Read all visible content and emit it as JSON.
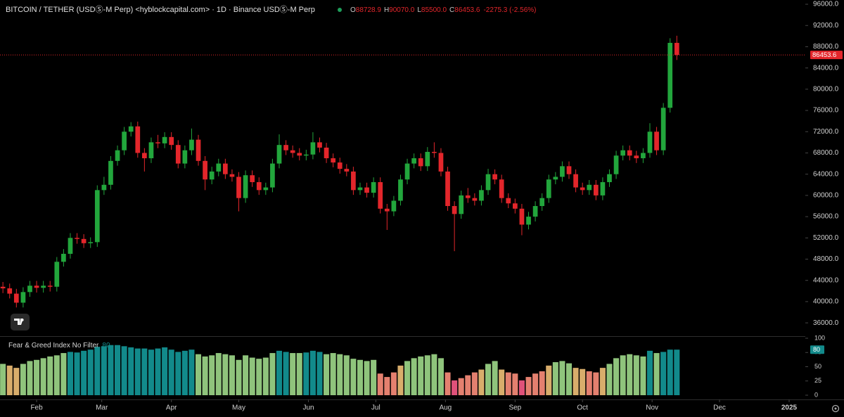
{
  "chart_data": {
    "type": "candlestick",
    "title": "BITCOIN / TETHER (USDⓈ-M Perp) <hyblockcapital.com> · 1D · Binance USDⓈ-M Perp",
    "readout_labels": [
      "O",
      "H",
      "L",
      "C"
    ],
    "readout_values": [
      "88728.9",
      "90070.0",
      "85500.0",
      "86453.6"
    ],
    "change": "-2275.3 (-2.56%)",
    "up_color": "#22a63c",
    "down_color": "#e3262b",
    "x": [
      17,
      20,
      23,
      26,
      29,
      32,
      35,
      38,
      41,
      44,
      47,
      50,
      53,
      56,
      59,
      62,
      65,
      68,
      71,
      74,
      77,
      80,
      83,
      86,
      89,
      92,
      95,
      98,
      101,
      104,
      107,
      110,
      113,
      116,
      119,
      122,
      125,
      128,
      131,
      134,
      137,
      140,
      143,
      146,
      149,
      152,
      155,
      158,
      161,
      164,
      167,
      170,
      173,
      176,
      179,
      182,
      185,
      188,
      191,
      194,
      197,
      200,
      203,
      206,
      209,
      212,
      215,
      218,
      221,
      224,
      227,
      230,
      233,
      236,
      239,
      242,
      245,
      248,
      251,
      254,
      257,
      260,
      263,
      266,
      269,
      272,
      275,
      278,
      281,
      284,
      287,
      290,
      293,
      296,
      299,
      302,
      305,
      308,
      311,
      314,
      317
    ],
    "xlim": [
      15.7,
      374.2
    ],
    "xticks": [
      {
        "value": 32,
        "label": "Feb"
      },
      {
        "value": 61,
        "label": "Mar"
      },
      {
        "value": 92,
        "label": "Apr"
      },
      {
        "value": 122,
        "label": "May"
      },
      {
        "value": 153,
        "label": "Jun"
      },
      {
        "value": 183,
        "label": "Jul"
      },
      {
        "value": 214,
        "label": "Aug"
      },
      {
        "value": 245,
        "label": "Sep"
      },
      {
        "value": 275,
        "label": "Oct"
      },
      {
        "value": 306,
        "label": "Nov"
      },
      {
        "value": 336,
        "label": "Dec"
      },
      {
        "value": 367,
        "label": "2025"
      }
    ],
    "candles": [
      [
        42800,
        43700,
        41600,
        42500
      ],
      [
        42500,
        43400,
        40600,
        41500
      ],
      [
        41500,
        42400,
        38900,
        39800
      ],
      [
        39800,
        42700,
        38900,
        41800
      ],
      [
        41800,
        43900,
        40900,
        43000
      ],
      [
        43000,
        43900,
        41700,
        42600
      ],
      [
        42600,
        43900,
        41700,
        43000
      ],
      [
        43000,
        43900,
        41900,
        42800
      ],
      [
        42800,
        48400,
        41900,
        47500
      ],
      [
        47500,
        49900,
        46600,
        49000
      ],
      [
        49000,
        52900,
        48100,
        52000
      ],
      [
        52000,
        52900,
        50900,
        51800
      ],
      [
        51800,
        52700,
        50100,
        51000
      ],
      [
        51000,
        52100,
        50100,
        51200
      ],
      [
        51200,
        61900,
        50300,
        61000
      ],
      [
        61000,
        63500,
        60100,
        62000
      ],
      [
        62000,
        67400,
        61100,
        66500
      ],
      [
        66500,
        69400,
        65600,
        68500
      ],
      [
        68500,
        72900,
        67600,
        72000
      ],
      [
        72000,
        73800,
        71100,
        73000
      ],
      [
        73000,
        73900,
        67100,
        68000
      ],
      [
        68000,
        68900,
        64500,
        67000
      ],
      [
        67000,
        70900,
        66100,
        70000
      ],
      [
        70000,
        71400,
        68900,
        69800
      ],
      [
        69800,
        71900,
        68900,
        71000
      ],
      [
        71000,
        71900,
        68600,
        69500
      ],
      [
        69500,
        70400,
        65100,
        66000
      ],
      [
        66000,
        69400,
        65100,
        68500
      ],
      [
        68500,
        72600,
        67600,
        70500
      ],
      [
        70500,
        71400,
        65600,
        66500
      ],
      [
        66500,
        67400,
        61000,
        63000
      ],
      [
        63000,
        65400,
        62100,
        64500
      ],
      [
        64500,
        66900,
        63600,
        66000
      ],
      [
        66000,
        66900,
        63100,
        64000
      ],
      [
        64000,
        64900,
        62600,
        63500
      ],
      [
        63500,
        64400,
        57000,
        59500
      ],
      [
        59500,
        64700,
        58600,
        63800
      ],
      [
        63800,
        64700,
        61600,
        62500
      ],
      [
        62500,
        63400,
        60100,
        61000
      ],
      [
        61000,
        62400,
        60100,
        61500
      ],
      [
        61500,
        66900,
        60600,
        66000
      ],
      [
        66000,
        71500,
        65100,
        69500
      ],
      [
        69500,
        70400,
        67600,
        68500
      ],
      [
        68500,
        69400,
        67100,
        68000
      ],
      [
        68000,
        68900,
        66600,
        67500
      ],
      [
        67500,
        68600,
        66600,
        67700
      ],
      [
        67700,
        71900,
        66800,
        70000
      ],
      [
        70000,
        70900,
        68100,
        69000
      ],
      [
        69000,
        69900,
        66100,
        67000
      ],
      [
        67000,
        67900,
        65300,
        66200
      ],
      [
        66200,
        67100,
        64100,
        65000
      ],
      [
        65000,
        65900,
        63600,
        64500
      ],
      [
        64500,
        65400,
        60100,
        61000
      ],
      [
        61000,
        62400,
        60100,
        61500
      ],
      [
        61500,
        62400,
        59600,
        60500
      ],
      [
        60500,
        63400,
        59600,
        62500
      ],
      [
        62500,
        63400,
        56600,
        57500
      ],
      [
        57500,
        58400,
        53500,
        57000
      ],
      [
        57000,
        59900,
        56100,
        59000
      ],
      [
        59000,
        63900,
        58100,
        63000
      ],
      [
        63000,
        66900,
        62100,
        66000
      ],
      [
        66000,
        67900,
        65100,
        67000
      ],
      [
        67000,
        67900,
        64600,
        65500
      ],
      [
        65500,
        69100,
        64600,
        68200
      ],
      [
        68200,
        70000,
        67100,
        68000
      ],
      [
        68000,
        68900,
        63600,
        64500
      ],
      [
        64500,
        65400,
        57100,
        58000
      ],
      [
        58000,
        58900,
        49500,
        56500
      ],
      [
        56500,
        60900,
        55600,
        60000
      ],
      [
        60000,
        61400,
        58600,
        59500
      ],
      [
        59500,
        60400,
        58100,
        59000
      ],
      [
        59000,
        61900,
        58100,
        61000
      ],
      [
        61000,
        65000,
        60100,
        64000
      ],
      [
        64000,
        64900,
        62100,
        63000
      ],
      [
        63000,
        63900,
        58600,
        59500
      ],
      [
        59500,
        60400,
        57600,
        58500
      ],
      [
        58500,
        59400,
        56600,
        57500
      ],
      [
        57500,
        58400,
        52500,
        54500
      ],
      [
        54500,
        56900,
        53600,
        56000
      ],
      [
        56000,
        58900,
        55100,
        58000
      ],
      [
        58000,
        60400,
        57100,
        59500
      ],
      [
        59500,
        63900,
        58600,
        63000
      ],
      [
        63000,
        64400,
        62100,
        63500
      ],
      [
        63500,
        66400,
        62600,
        65500
      ],
      [
        65500,
        66400,
        63100,
        64000
      ],
      [
        64000,
        64900,
        60600,
        61500
      ],
      [
        61500,
        62400,
        60100,
        61000
      ],
      [
        61000,
        62900,
        60100,
        62000
      ],
      [
        62000,
        62900,
        59100,
        60000
      ],
      [
        60000,
        63400,
        59100,
        62500
      ],
      [
        62500,
        64900,
        61600,
        64000
      ],
      [
        64000,
        68400,
        63100,
        67500
      ],
      [
        67500,
        69400,
        66600,
        68500
      ],
      [
        68500,
        69400,
        66600,
        67500
      ],
      [
        67500,
        68400,
        66100,
        67000
      ],
      [
        67000,
        68900,
        66100,
        68000
      ],
      [
        68000,
        73600,
        67100,
        72000
      ],
      [
        72000,
        72900,
        67600,
        68500
      ],
      [
        68500,
        77400,
        67600,
        76500
      ],
      [
        76500,
        89600,
        75600,
        88728.9
      ],
      [
        88728.9,
        90070,
        85500,
        86453.6
      ]
    ],
    "ylim": [
      33500,
      96800
    ],
    "yticks": [
      {
        "value": 36000,
        "label": "36000.0"
      },
      {
        "value": 40000,
        "label": "40000.0"
      },
      {
        "value": 44000,
        "label": "44000.0"
      },
      {
        "value": 48000,
        "label": "48000.0"
      },
      {
        "value": 52000,
        "label": "52000.0"
      },
      {
        "value": 56000,
        "label": "56000.0"
      },
      {
        "value": 60000,
        "label": "60000.0"
      },
      {
        "value": 64000,
        "label": "64000.0"
      },
      {
        "value": 68000,
        "label": "68000.0"
      },
      {
        "value": 72000,
        "label": "72000.0"
      },
      {
        "value": 76000,
        "label": "76000.0"
      },
      {
        "value": 80000,
        "label": "80000.0"
      },
      {
        "value": 84000,
        "label": "84000.0"
      },
      {
        "value": 88000,
        "label": "88000.0"
      },
      {
        "value": 92000,
        "label": "92000.0"
      },
      {
        "value": 96000,
        "label": "96000.0"
      }
    ],
    "last_price_color": "#e3262b",
    "fear_greed": {
      "title": "Fear & Greed Index No Filter",
      "values": [
        55,
        52,
        48,
        55,
        60,
        62,
        65,
        68,
        70,
        74,
        76,
        75,
        78,
        80,
        85,
        86,
        88,
        88,
        86,
        84,
        82,
        82,
        80,
        82,
        84,
        80,
        76,
        78,
        80,
        72,
        68,
        70,
        74,
        72,
        70,
        62,
        70,
        66,
        64,
        66,
        74,
        78,
        76,
        74,
        74,
        75,
        78,
        76,
        72,
        74,
        72,
        70,
        64,
        62,
        60,
        62,
        38,
        32,
        40,
        52,
        60,
        65,
        68,
        70,
        72,
        65,
        40,
        26,
        30,
        35,
        40,
        45,
        55,
        60,
        45,
        40,
        38,
        26,
        32,
        38,
        42,
        52,
        58,
        60,
        56,
        48,
        46,
        42,
        40,
        48,
        55,
        65,
        70,
        72,
        70,
        68,
        78,
        74,
        76,
        80,
        80
      ],
      "ylim": [
        0,
        100
      ],
      "yticks": [
        0,
        25,
        50,
        75,
        100
      ],
      "color_bands": [
        {
          "min": 75,
          "color": "#128a8b"
        },
        {
          "min": 55,
          "color": "#8fc47c"
        },
        {
          "min": 45,
          "color": "#d8ad6b"
        },
        {
          "min": 30,
          "color": "#e4806f"
        },
        {
          "min": 0,
          "color": "#e0517a"
        }
      ]
    }
  }
}
